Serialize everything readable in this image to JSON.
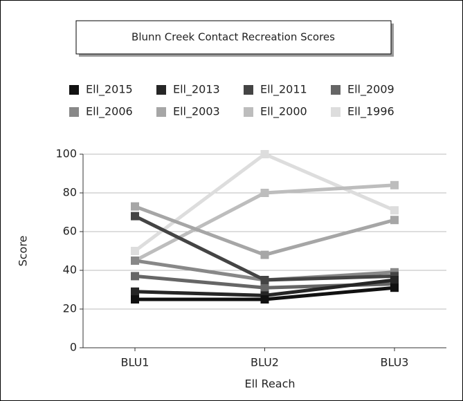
{
  "chart_data": {
    "type": "line",
    "title": "Blunn Creek Contact Recreation Scores",
    "x_label": "Ell Reach",
    "y_label": "Score",
    "categories": [
      "BLU1",
      "BLU2",
      "BLU3"
    ],
    "series": [
      {
        "name": "Ell_2015",
        "color": "#111111",
        "values": [
          25,
          25,
          31
        ]
      },
      {
        "name": "Ell_2013",
        "color": "#262626",
        "values": [
          29,
          27,
          35
        ]
      },
      {
        "name": "Ell_2011",
        "color": "#444444",
        "values": [
          68,
          35,
          37
        ]
      },
      {
        "name": "Ell_2009",
        "color": "#666666",
        "values": [
          37,
          31,
          33
        ]
      },
      {
        "name": "Ell_2006",
        "color": "#888888",
        "values": [
          45,
          35,
          39
        ]
      },
      {
        "name": "Ell_2003",
        "color": "#a6a6a6",
        "values": [
          73,
          48,
          66
        ]
      },
      {
        "name": "Ell_2000",
        "color": "#bdbdbd",
        "values": [
          45,
          80,
          84
        ]
      },
      {
        "name": "Ell_1996",
        "color": "#dddddd",
        "values": [
          50,
          100,
          71
        ]
      }
    ],
    "ylim": [
      0,
      100
    ],
    "yticks": [
      0,
      20,
      40,
      60,
      80,
      100
    ],
    "grid": true
  }
}
